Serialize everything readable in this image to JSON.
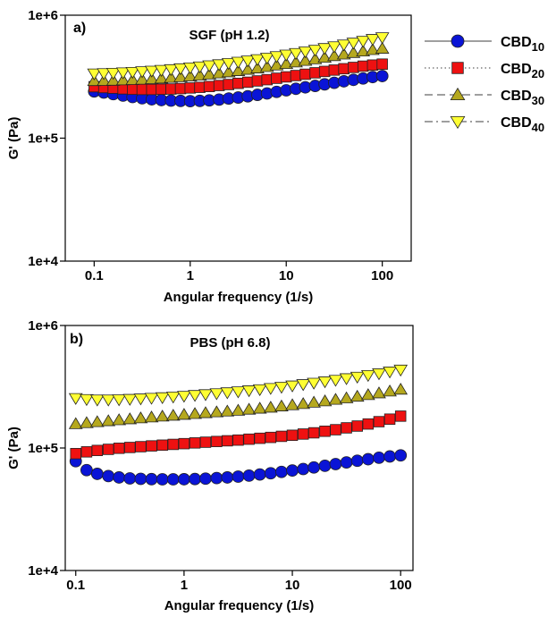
{
  "chart_data": [
    {
      "type": "scatter",
      "panel_label": "a)",
      "title": "SGF (pH 1.2)",
      "xlabel": "Angular frequency (1/s)",
      "ylabel": "G' (Pa)",
      "xscale": "log",
      "yscale": "log",
      "xlim": [
        0.05,
        200
      ],
      "ylim": [
        10000,
        1000000
      ],
      "xticks": [
        "0.1",
        "1",
        "10",
        "100"
      ],
      "yticks": [
        "1e+4",
        "1e+5",
        "1e+6"
      ],
      "grid": false,
      "x": [
        0.1,
        0.126,
        0.158,
        0.2,
        0.251,
        0.316,
        0.398,
        0.501,
        0.631,
        0.794,
        1,
        1.26,
        1.58,
        2,
        2.51,
        3.16,
        3.98,
        5.01,
        6.31,
        7.94,
        10,
        12.6,
        15.8,
        20,
        25.1,
        31.6,
        39.8,
        50.1,
        63.1,
        79.4,
        100
      ],
      "series": [
        {
          "name": "CBD",
          "name_sub": "10",
          "marker": "circle",
          "color": "#0a14d6",
          "line": "solid",
          "values": [
            240000,
            235000,
            228000,
            222000,
            216000,
            211000,
            207000,
            204000,
            202000,
            201000,
            200000,
            201000,
            203000,
            206000,
            210000,
            214000,
            219000,
            225000,
            231000,
            238000,
            245000,
            252000,
            259000,
            266000,
            274000,
            282000,
            290000,
            298000,
            306000,
            314000,
            320000
          ]
        },
        {
          "name": "CBD",
          "name_sub": "20",
          "marker": "square",
          "color": "#ee1111",
          "line": "dotted",
          "values": [
            262000,
            258000,
            255000,
            252000,
            250000,
            249000,
            249000,
            250000,
            251000,
            253000,
            256000,
            259000,
            263000,
            268000,
            273000,
            279000,
            285000,
            292000,
            299000,
            307000,
            315000,
            323000,
            331000,
            340000,
            349000,
            358000,
            367000,
            376000,
            385000,
            393000,
            400000
          ]
        },
        {
          "name": "CBD",
          "name_sub": "30",
          "marker": "triangle-up",
          "color": "#b5a81e",
          "line": "dashed",
          "values": [
            292000,
            293000,
            294000,
            296000,
            298000,
            300000,
            303000,
            306000,
            310000,
            314000,
            319000,
            324000,
            330000,
            337000,
            344000,
            352000,
            361000,
            370000,
            380000,
            391000,
            402000,
            414000,
            426000,
            439000,
            452000,
            466000,
            480000,
            494000,
            508000,
            522000,
            535000
          ]
        },
        {
          "name": "CBD",
          "name_sub": "40",
          "marker": "triangle-down",
          "color": "#ffff33",
          "line": "dash-dot",
          "values": [
            335000,
            337000,
            339000,
            342000,
            345000,
            349000,
            353000,
            358000,
            363000,
            369000,
            375000,
            382000,
            390000,
            398000,
            407000,
            417000,
            427000,
            438000,
            450000,
            463000,
            477000,
            491000,
            506000,
            522000,
            539000,
            557000,
            576000,
            596000,
            617000,
            639000,
            660000
          ]
        }
      ]
    },
    {
      "type": "scatter",
      "panel_label": "b)",
      "title": "PBS (pH 6.8)",
      "xlabel": "Angular frequency (1/s)",
      "ylabel": "G' (Pa)",
      "xscale": "log",
      "yscale": "log",
      "xlim": [
        0.08,
        130
      ],
      "ylim": [
        10000,
        1000000
      ],
      "xticks": [
        "0.1",
        "1",
        "10",
        "100"
      ],
      "yticks": [
        "1e+4",
        "1e+5",
        "1e+6"
      ],
      "grid": false,
      "x": [
        0.1,
        0.126,
        0.158,
        0.2,
        0.251,
        0.316,
        0.398,
        0.501,
        0.631,
        0.794,
        1,
        1.26,
        1.58,
        2,
        2.51,
        3.16,
        3.98,
        5.01,
        6.31,
        7.94,
        10,
        12.6,
        15.8,
        20,
        25.1,
        31.6,
        39.8,
        50.1,
        63.1,
        79.4,
        100
      ],
      "series": [
        {
          "name": "CBD",
          "name_sub": "10",
          "marker": "circle",
          "color": "#0a14d6",
          "values": [
            78000,
            66000,
            61500,
            59000,
            57500,
            56500,
            56000,
            55700,
            55500,
            55500,
            55600,
            55800,
            56200,
            56800,
            57500,
            58400,
            59500,
            60800,
            62200,
            63800,
            65500,
            67400,
            69400,
            71600,
            73900,
            76300,
            78700,
            81000,
            83300,
            85300,
            87000
          ]
        },
        {
          "name": "CBD",
          "name_sub": "20",
          "marker": "square",
          "color": "#ee1111",
          "values": [
            90000,
            93000,
            95500,
            97500,
            99500,
            101000,
            102500,
            104000,
            105500,
            107000,
            108500,
            110000,
            111500,
            113000,
            114500,
            116000,
            118000,
            120000,
            122000,
            124500,
            127000,
            130000,
            133000,
            137000,
            141000,
            146000,
            151000,
            157000,
            164000,
            172000,
            182000
          ]
        },
        {
          "name": "CBD",
          "name_sub": "30",
          "marker": "triangle-up",
          "color": "#b5a81e",
          "values": [
            157000,
            160000,
            163000,
            166000,
            169000,
            172000,
            175000,
            178000,
            181000,
            184000,
            187000,
            190000,
            193000,
            196000,
            199000,
            202000,
            206000,
            210000,
            214000,
            219000,
            224000,
            229000,
            235000,
            241000,
            248000,
            255000,
            263000,
            271000,
            280000,
            290000,
            300000
          ]
        },
        {
          "name": "CBD",
          "name_sub": "40",
          "marker": "triangle-down",
          "color": "#ffff33",
          "values": [
            255000,
            250000,
            248000,
            248000,
            249000,
            251000,
            253000,
            256000,
            259000,
            262000,
            266000,
            270000,
            274000,
            279000,
            284000,
            289000,
            295000,
            301000,
            308000,
            315000,
            323000,
            331000,
            340000,
            349000,
            359000,
            370000,
            381000,
            393000,
            406000,
            420000,
            435000
          ]
        }
      ]
    }
  ]
}
